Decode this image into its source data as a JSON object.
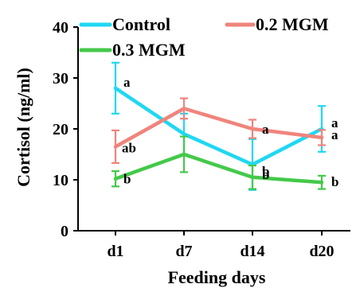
{
  "chart_data": {
    "type": "line",
    "title": "",
    "xlabel": "Feeding days",
    "ylabel": "Cortisol (ng/ml)",
    "categories": [
      "d1",
      "d7",
      "d14",
      "d20"
    ],
    "ylim": [
      0,
      40
    ],
    "yticks": [
      0,
      10,
      20,
      30,
      40
    ],
    "grid": false,
    "legend_position": "top",
    "series": [
      {
        "name": "Control",
        "color": "#1ed8f2",
        "values": [
          28,
          19,
          13,
          20
        ],
        "errors": [
          5,
          4,
          5,
          4.5
        ],
        "labels": [
          "a",
          "",
          "b",
          "a"
        ]
      },
      {
        "name": "0.2 MGM",
        "color": "#f0847c",
        "values": [
          16.5,
          24,
          20,
          18.3
        ],
        "errors": [
          3.2,
          2,
          1.8,
          1.5
        ],
        "labels": [
          "ab",
          "",
          "a",
          "a"
        ]
      },
      {
        "name": "0.3 MGM",
        "color": "#44c94a",
        "values": [
          10.2,
          15,
          10.5,
          9.5
        ],
        "errors": [
          1.5,
          3.5,
          2.3,
          1.3
        ],
        "labels": [
          "b",
          "",
          "b",
          "b"
        ]
      }
    ]
  }
}
